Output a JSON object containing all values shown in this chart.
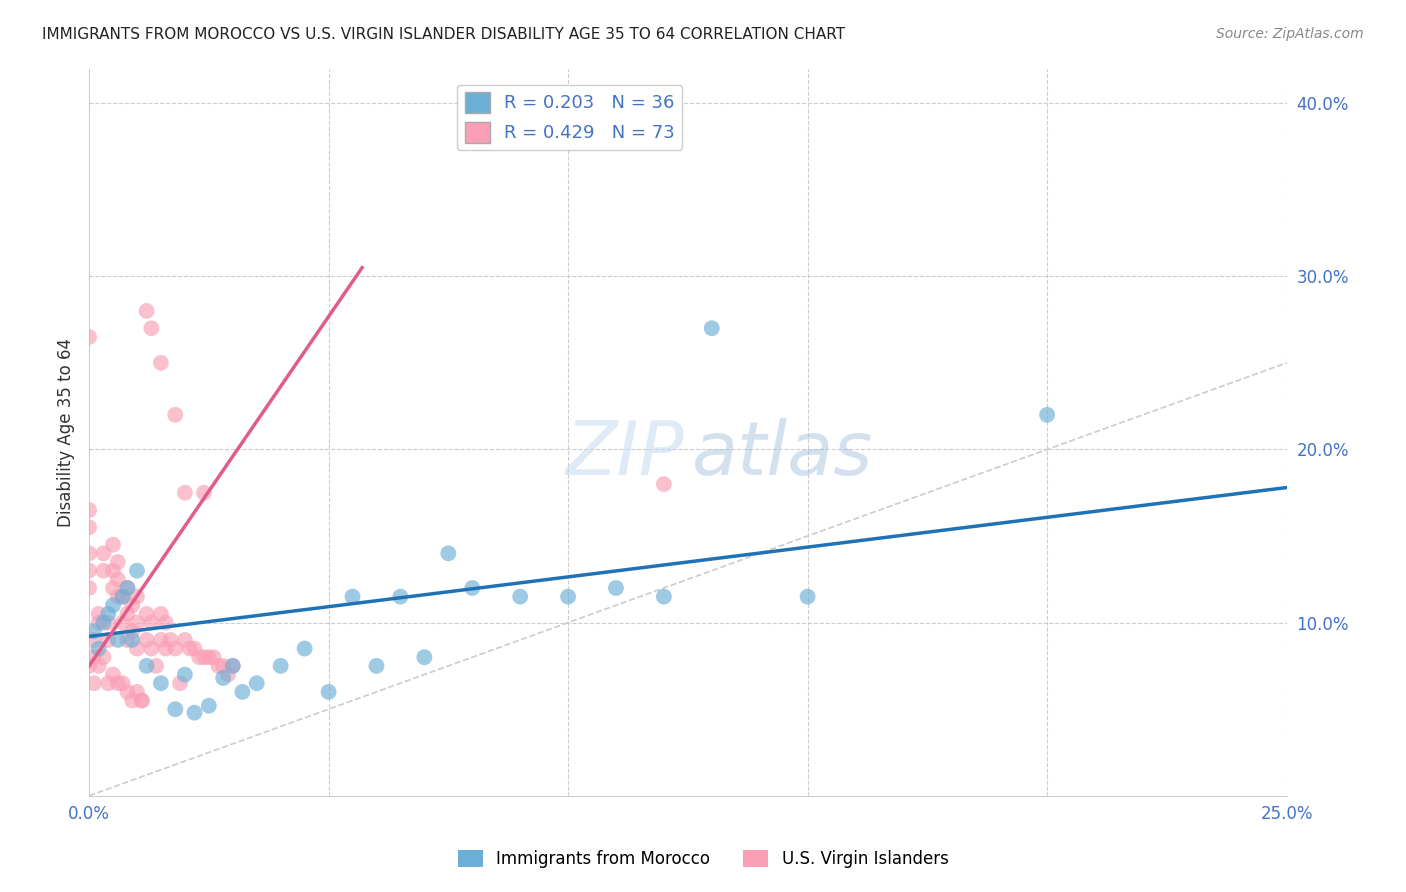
{
  "title": "IMMIGRANTS FROM MOROCCO VS U.S. VIRGIN ISLANDER DISABILITY AGE 35 TO 64 CORRELATION CHART",
  "source": "Source: ZipAtlas.com",
  "ylabel": "Disability Age 35 to 64",
  "xlim": [
    0.0,
    0.25
  ],
  "ylim": [
    0.0,
    0.42
  ],
  "legend_blue_R": "0.203",
  "legend_blue_N": "36",
  "legend_pink_R": "0.429",
  "legend_pink_N": "73",
  "blue_color": "#6baed6",
  "pink_color": "#fa9fb5",
  "blue_line_color": "#2171b5",
  "pink_line_color": "#e05c8a",
  "blue_scatter_x": [
    0.001,
    0.002,
    0.003,
    0.004,
    0.005,
    0.006,
    0.007,
    0.008,
    0.009,
    0.01,
    0.012,
    0.015,
    0.018,
    0.02,
    0.022,
    0.025,
    0.028,
    0.03,
    0.032,
    0.035,
    0.04,
    0.045,
    0.05,
    0.055,
    0.06,
    0.065,
    0.07,
    0.075,
    0.08,
    0.09,
    0.1,
    0.11,
    0.12,
    0.13,
    0.15,
    0.2
  ],
  "blue_scatter_y": [
    0.095,
    0.085,
    0.1,
    0.105,
    0.11,
    0.09,
    0.115,
    0.12,
    0.09,
    0.13,
    0.075,
    0.065,
    0.05,
    0.07,
    0.048,
    0.052,
    0.068,
    0.075,
    0.06,
    0.065,
    0.075,
    0.085,
    0.06,
    0.115,
    0.075,
    0.115,
    0.08,
    0.14,
    0.12,
    0.115,
    0.115,
    0.12,
    0.115,
    0.27,
    0.115,
    0.22
  ],
  "pink_scatter_x": [
    0.0,
    0.0,
    0.0,
    0.0,
    0.0,
    0.001,
    0.001,
    0.002,
    0.002,
    0.003,
    0.003,
    0.004,
    0.004,
    0.005,
    0.005,
    0.005,
    0.006,
    0.006,
    0.006,
    0.007,
    0.007,
    0.008,
    0.008,
    0.008,
    0.009,
    0.009,
    0.01,
    0.01,
    0.01,
    0.011,
    0.012,
    0.012,
    0.013,
    0.013,
    0.014,
    0.015,
    0.015,
    0.016,
    0.016,
    0.017,
    0.018,
    0.019,
    0.02,
    0.02,
    0.021,
    0.022,
    0.023,
    0.024,
    0.025,
    0.026,
    0.027,
    0.028,
    0.029,
    0.03,
    0.0,
    0.0,
    0.001,
    0.002,
    0.003,
    0.004,
    0.005,
    0.006,
    0.007,
    0.008,
    0.009,
    0.01,
    0.011,
    0.012,
    0.013,
    0.015,
    0.018,
    0.024,
    0.12
  ],
  "pink_scatter_y": [
    0.12,
    0.13,
    0.14,
    0.155,
    0.165,
    0.08,
    0.09,
    0.1,
    0.105,
    0.13,
    0.14,
    0.09,
    0.1,
    0.12,
    0.13,
    0.145,
    0.115,
    0.125,
    0.135,
    0.1,
    0.115,
    0.09,
    0.105,
    0.12,
    0.095,
    0.11,
    0.085,
    0.1,
    0.115,
    0.055,
    0.09,
    0.105,
    0.085,
    0.1,
    0.075,
    0.09,
    0.105,
    0.085,
    0.1,
    0.09,
    0.085,
    0.065,
    0.175,
    0.09,
    0.085,
    0.085,
    0.08,
    0.08,
    0.08,
    0.08,
    0.075,
    0.075,
    0.07,
    0.075,
    0.265,
    0.075,
    0.065,
    0.075,
    0.08,
    0.065,
    0.07,
    0.065,
    0.065,
    0.06,
    0.055,
    0.06,
    0.055,
    0.28,
    0.27,
    0.25,
    0.22,
    0.175,
    0.18
  ]
}
